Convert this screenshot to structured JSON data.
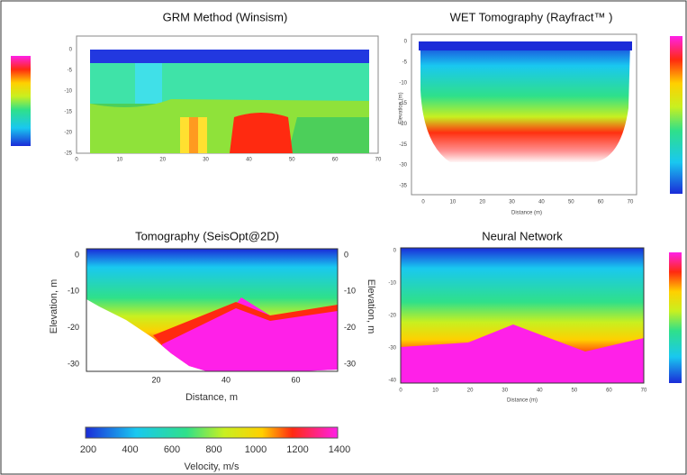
{
  "panels": [
    {
      "title": "GRM Method (Winsism)",
      "xticks": [
        0,
        10,
        20,
        30,
        40,
        50,
        60,
        70
      ],
      "yticks": [
        0,
        -5,
        -10,
        -15,
        -20,
        -25
      ]
    },
    {
      "title": "WET Tomography (Rayfract™ )",
      "x_label": "Distance (m)",
      "y_label": "Elevation (m)",
      "xticks": [
        0,
        10,
        20,
        30,
        40,
        50,
        60,
        70
      ],
      "yticks": [
        0,
        -5,
        -10,
        -15,
        -20,
        -25,
        -30,
        -35
      ]
    },
    {
      "title": "Tomography (SeisOpt@2D)",
      "x_label": "Distance, m",
      "y_label": "Elevation, m",
      "xticks": [
        20,
        40,
        60
      ],
      "yticks": [
        0,
        -10,
        -20,
        -30
      ]
    },
    {
      "title": "Neural Network",
      "x_label": "Distance (m)",
      "xticks": [
        0,
        10,
        20,
        30,
        40,
        50,
        60,
        70
      ],
      "yticks": [
        0,
        -10,
        -20,
        -30,
        -40
      ]
    }
  ],
  "colorbar": {
    "label": "Velocity, m/s",
    "ticks": [
      200,
      400,
      600,
      800,
      1000,
      1200,
      1400
    ]
  }
}
